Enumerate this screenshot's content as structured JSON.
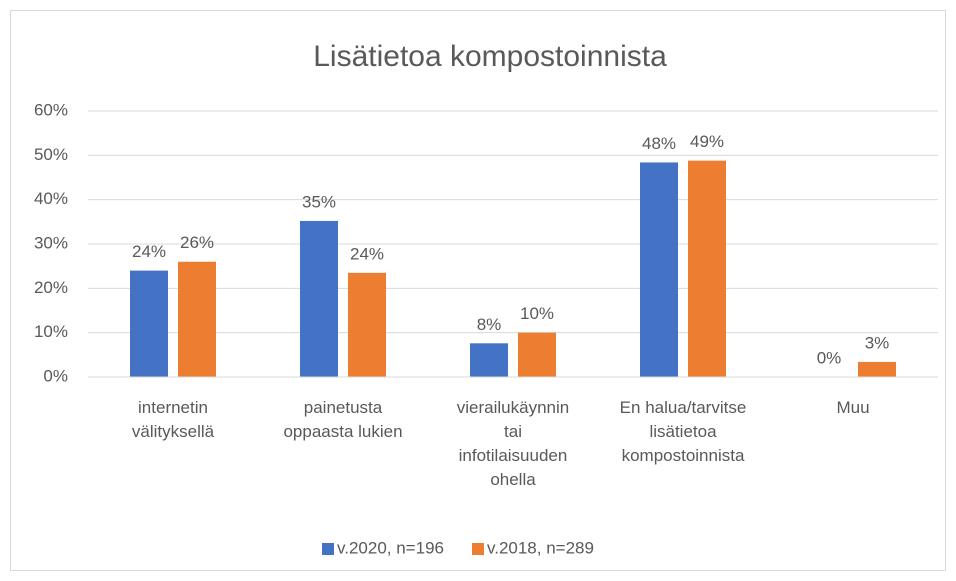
{
  "chart_data": {
    "type": "bar",
    "title": "Lisätietoa kompostoinnista",
    "categories": [
      "internetin\nvälityksellä",
      "painetusta\noppaasta lukien",
      "vierailukäynnin\ntai\ninfotilaisuuden\nohella",
      "En halua/tarvitse\nlisätietoa\nkompostoinnista",
      "Muu"
    ],
    "series": [
      {
        "name": "v.2020, n=196",
        "color": "#4472c4",
        "values": [
          24,
          35.2,
          7.6,
          48.4,
          0
        ],
        "value_labels": [
          "24%",
          "35%",
          "8%",
          "48%",
          "0%"
        ]
      },
      {
        "name": "v.2018, n=289",
        "color": "#ed7d31",
        "values": [
          26,
          23.5,
          10,
          48.8,
          3.4
        ],
        "value_labels": [
          "26%",
          "24%",
          "10%",
          "49%",
          "3%"
        ]
      }
    ],
    "ylim": [
      0,
      60
    ],
    "yticks": [
      {
        "value": 0,
        "label": "0%"
      },
      {
        "value": 10,
        "label": "10%"
      },
      {
        "value": 20,
        "label": "20%"
      },
      {
        "value": 30,
        "label": "30%"
      },
      {
        "value": 40,
        "label": "40%"
      },
      {
        "value": 50,
        "label": "50%"
      },
      {
        "value": 60,
        "label": "60%"
      }
    ],
    "grid": true,
    "legend": "bottom"
  }
}
